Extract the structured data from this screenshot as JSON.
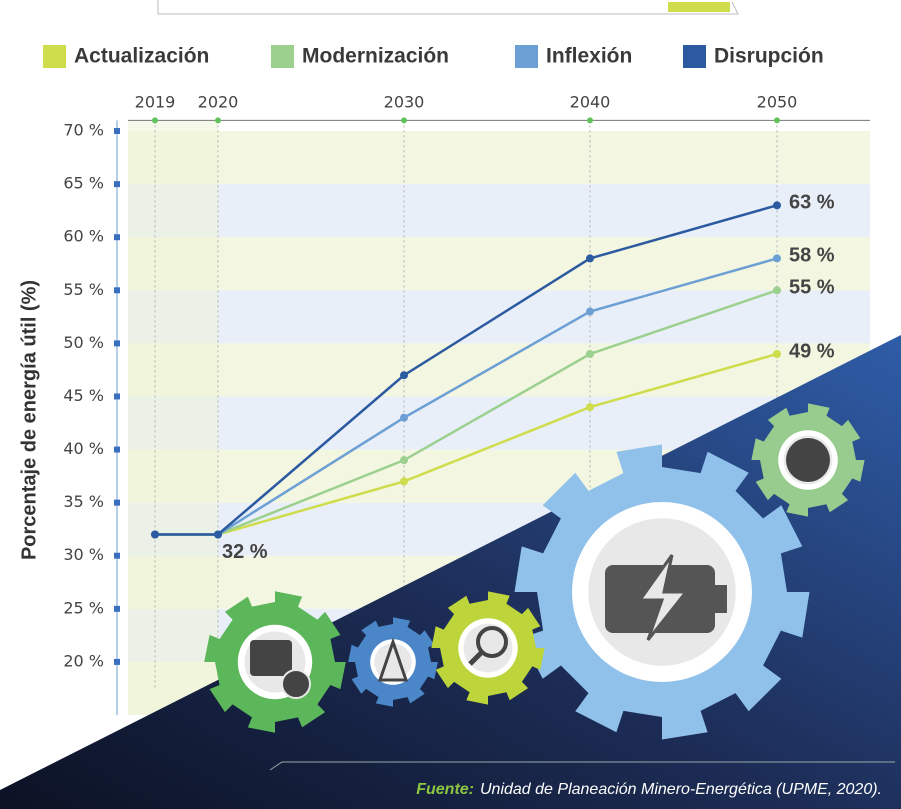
{
  "chart_data": {
    "type": "line",
    "y_label": "Porcentaje de energía útil (%)",
    "categories": [
      "2019",
      "2020",
      "2030",
      "2040",
      "2050"
    ],
    "series": [
      {
        "name": "Actualización",
        "color": "#cfdc4b",
        "values": [
          32,
          32,
          37,
          44,
          49
        ],
        "value_labels": [
          null,
          "32 %",
          null,
          null,
          "49 %"
        ]
      },
      {
        "name": "Modernización",
        "color": "#9bd08f",
        "values": [
          32,
          32,
          39,
          49,
          55
        ],
        "value_labels": [
          null,
          null,
          null,
          null,
          "55 %"
        ]
      },
      {
        "name": "Inflexión",
        "color": "#6c9fd3",
        "values": [
          32,
          32,
          43,
          53,
          58
        ],
        "value_labels": [
          null,
          null,
          null,
          null,
          "58 %"
        ]
      },
      {
        "name": "Disrupción",
        "color": "#2c5aa0",
        "values": [
          32,
          32,
          47,
          58,
          63
        ],
        "value_labels": [
          null,
          null,
          null,
          null,
          "63 %"
        ]
      }
    ],
    "ylim": [
      15,
      71
    ],
    "yticks": [
      {
        "value": 20,
        "label": "20 %"
      },
      {
        "value": 25,
        "label": "25 %"
      },
      {
        "value": 30,
        "label": "30 %"
      },
      {
        "value": 35,
        "label": "35 %"
      },
      {
        "value": 40,
        "label": "40 %"
      },
      {
        "value": 45,
        "label": "45 %"
      },
      {
        "value": 50,
        "label": "50 %"
      },
      {
        "value": 55,
        "label": "55 %"
      },
      {
        "value": 60,
        "label": "60 %"
      },
      {
        "value": 65,
        "label": "65 %"
      },
      {
        "value": 70,
        "label": "70 %"
      }
    ],
    "grid": true,
    "source_label": "Fuente:",
    "source": "Unidad de Planeación Minero-Energética (UPME, 2020)."
  }
}
